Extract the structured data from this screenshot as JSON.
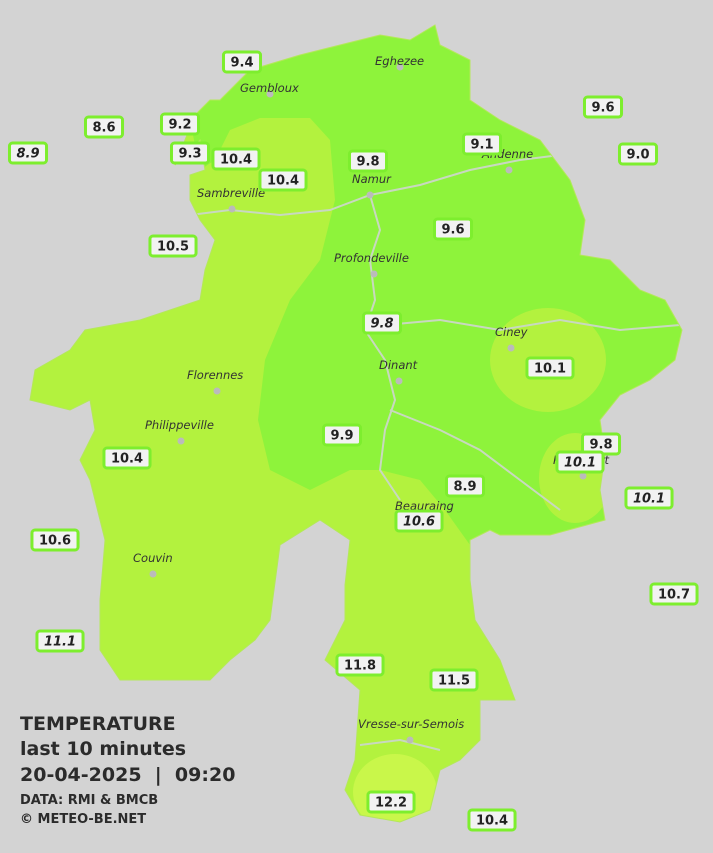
{
  "cities": [
    "Eghezee",
    "Gembloux",
    "Andenne",
    "Namur",
    "Sambreville",
    "Profondeville",
    "Ciney",
    "Dinant",
    "Florennes",
    "Philippeville",
    "Beauraing",
    "Rochefort",
    "Couvin",
    "Vresse-sur-Semois"
  ],
  "stations": [
    {
      "value": "9.4"
    },
    {
      "value": "8.6"
    },
    {
      "value": "9.2"
    },
    {
      "value": "8.9",
      "italic": true
    },
    {
      "value": "9.3"
    },
    {
      "value": "10.4"
    },
    {
      "value": "10.4"
    },
    {
      "value": "9.8"
    },
    {
      "value": "9.1"
    },
    {
      "value": "9.6"
    },
    {
      "value": "9.0"
    },
    {
      "value": "10.5"
    },
    {
      "value": "9.6"
    },
    {
      "value": "9.8",
      "italic": true
    },
    {
      "value": "10.1"
    },
    {
      "value": "9.9"
    },
    {
      "value": "9.8"
    },
    {
      "value": "10.1",
      "italic": true
    },
    {
      "value": "10.4"
    },
    {
      "value": "8.9"
    },
    {
      "value": "10.6",
      "italic": true
    },
    {
      "value": "10.1",
      "italic": true
    },
    {
      "value": "10.6"
    },
    {
      "value": "10.7"
    },
    {
      "value": "11.1",
      "italic": true
    },
    {
      "value": "11.8"
    },
    {
      "value": "11.5"
    },
    {
      "value": "12.2"
    },
    {
      "value": "10.4"
    }
  ],
  "legend": {
    "title": "TEMPERATURE",
    "subtitle": "last 10 minutes",
    "datetime": "20-04-2025  |  09:20",
    "source": "DATA: RMI & BMCB",
    "copyright": "© METEO-BE.NET"
  }
}
